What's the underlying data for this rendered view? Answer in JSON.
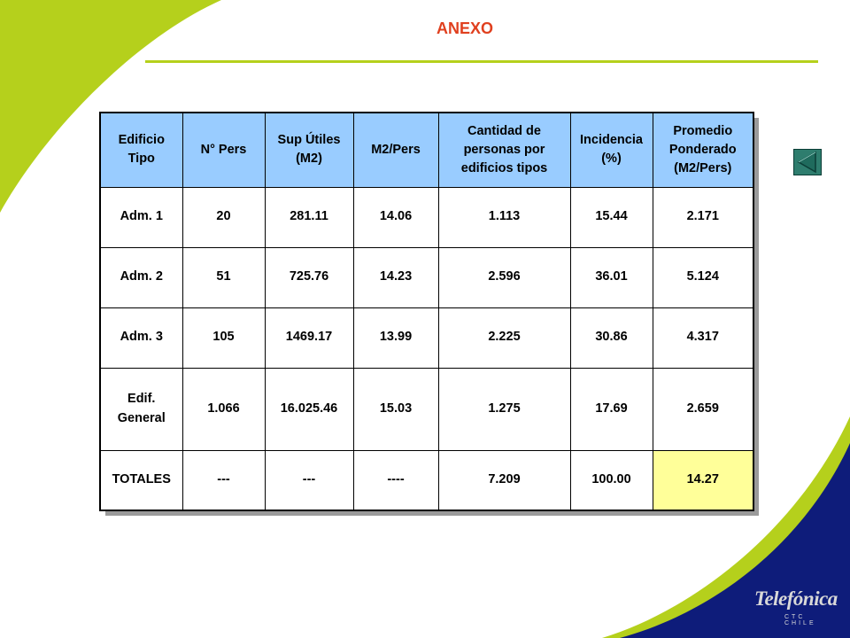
{
  "slide": {
    "title": "ANEXO",
    "colors": {
      "title": "#e0401f",
      "green": "#b5d01c",
      "navy": "#0e1c7a",
      "header_bg": "#99ccff",
      "highlight_bg": "#ffff99"
    }
  },
  "table": {
    "headers": [
      [
        "Edificio",
        "Tipo"
      ],
      [
        "N° Pers"
      ],
      [
        "Sup Útiles",
        "(M2)"
      ],
      [
        "M2/Pers"
      ],
      [
        "Cantidad de",
        "personas por",
        "edificios tipos"
      ],
      [
        "Incidencia",
        "(%)"
      ],
      [
        "Promedio",
        "Ponderado",
        "(M2/Pers)"
      ]
    ],
    "rows": [
      [
        [
          "Adm. 1"
        ],
        "20",
        "281.11",
        "14.06",
        "1.113",
        "15.44",
        "2.171"
      ],
      [
        [
          "Adm. 2"
        ],
        "51",
        "725.76",
        "14.23",
        "2.596",
        "36.01",
        "5.124"
      ],
      [
        [
          "Adm. 3"
        ],
        "105",
        "1469.17",
        "13.99",
        "2.225",
        "30.86",
        "4.317"
      ],
      [
        [
          "Edif.",
          "General"
        ],
        "1.066",
        "16.025.46",
        "15.03",
        "1.275",
        "17.69",
        "2.659"
      ],
      [
        [
          "TOTALES"
        ],
        "---",
        "---",
        "----",
        "7.209",
        "100.00",
        "14.27"
      ]
    ]
  },
  "nav": {
    "back_icon": "triangle-left-icon"
  },
  "logo": {
    "word": "Telefónica",
    "sub": "CTC CHILE"
  }
}
